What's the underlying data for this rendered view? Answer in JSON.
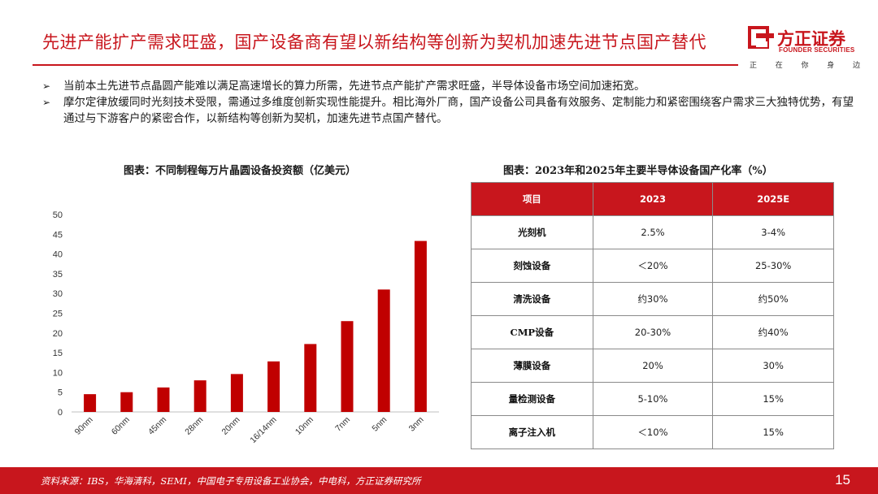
{
  "title": "先进产能扩产需求旺盛，国产设备商有望以新结构等创新为契机加速先进节点国产替代",
  "logo": {
    "name": "方正证券",
    "en": "FOUNDER SECURITIES",
    "slogan": [
      "正",
      "在",
      "你",
      "身",
      "边"
    ]
  },
  "bullets": [
    {
      "marker": "➢",
      "text": "当前本土先进节点晶圆产能难以满足高速增长的算力所需，先进节点产能扩产需求旺盛，半导体设备市场空间加速拓宽。"
    },
    {
      "marker": "➢",
      "text": "摩尔定律放缓同时光刻技术受限，需通过多维度创新实现性能提升。相比海外厂商，国产设备公司具备有效服务、定制能力和紧密围绕客户需求三大独特优势，有望通过与下游客户的紧密合作，以新结构等创新为契机，加速先进节点国产替代。"
    }
  ],
  "chart_caption": "图表：不同制程每万片晶圆设备投资额（亿美元）",
  "table_caption": "图表：2023年和2025年主要半导体设备国产化率（%）",
  "chart_data": {
    "type": "bar",
    "categories": [
      "90nm",
      "60nm",
      "45nm",
      "28nm",
      "20nm",
      "16/14nm",
      "10nm",
      "7nm",
      "5nm",
      "3nm"
    ],
    "values": [
      4.5,
      5.0,
      6.2,
      8.0,
      9.6,
      12.8,
      17.2,
      23.0,
      31.0,
      43.3
    ],
    "title": "",
    "xlabel": "",
    "ylabel": "",
    "ylim": [
      0,
      50
    ],
    "yticks": [
      0,
      5,
      10,
      15,
      20,
      25,
      30,
      35,
      40,
      45,
      50
    ],
    "bar_color": "#c00000",
    "grid": false
  },
  "table": {
    "headers": [
      "项目",
      "2023",
      "2025E"
    ],
    "rows": [
      [
        "光刻机",
        "2.5%",
        "3-4%"
      ],
      [
        "刻蚀设备",
        "＜20%",
        "25-30%"
      ],
      [
        "清洗设备",
        "约30%",
        "约50%"
      ],
      [
        "CMP设备",
        "20-30%",
        "约40%"
      ],
      [
        "薄膜设备",
        "20%",
        "30%"
      ],
      [
        "量检测设备",
        "5-10%",
        "15%"
      ],
      [
        "离子注入机",
        "＜10%",
        "15%"
      ]
    ]
  },
  "footer": {
    "source": "资料来源：IBS，华海清科，SEMI，中国电子专用设备工业协会，中电科，方正证券研究所",
    "page": "15"
  },
  "colors": {
    "accent": "#c8161d",
    "bar": "#c00000"
  }
}
